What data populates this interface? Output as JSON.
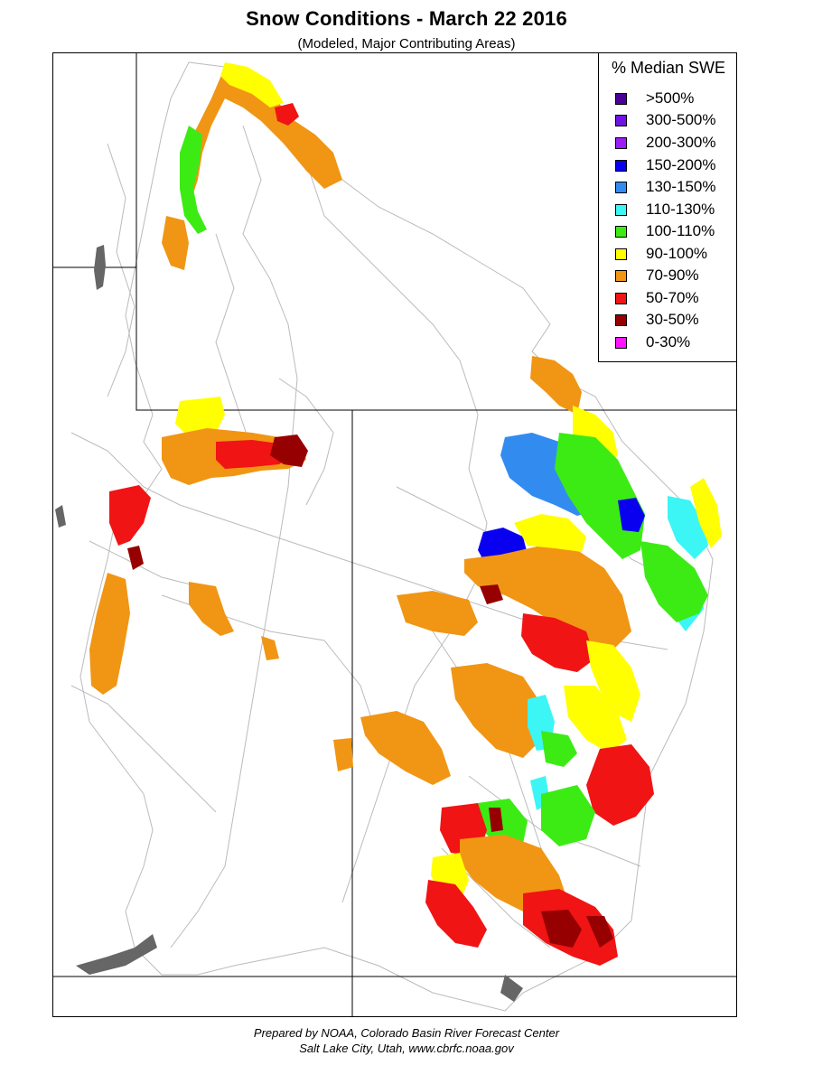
{
  "header": {
    "title": "Snow Conditions - March 22 2016",
    "subtitle": "(Modeled, Major Contributing Areas)"
  },
  "legend": {
    "title": "% Median SWE",
    "items": [
      {
        "label": ">500%",
        "color": "#4B0096"
      },
      {
        "label": "300-500%",
        "color": "#6F14E6"
      },
      {
        "label": "200-300%",
        "color": "#9B1EF5"
      },
      {
        "label": "150-200%",
        "color": "#0A00F0"
      },
      {
        "label": "130-150%",
        "color": "#328CF0"
      },
      {
        "label": "110-130%",
        "color": "#3CF5F5"
      },
      {
        "label": "100-110%",
        "color": "#3CEB14"
      },
      {
        "label": "90-100%",
        "color": "#FFFF00"
      },
      {
        "label": "70-90%",
        "color": "#F09614"
      },
      {
        "label": "50-70%",
        "color": "#F01414"
      },
      {
        "label": "30-50%",
        "color": "#960000"
      },
      {
        "label": "0-30%",
        "color": "#FF14FF"
      }
    ]
  },
  "map": {
    "colors": {
      "boundary": "#000000",
      "river": "#bbbbbb",
      "lake": "#666666"
    }
  },
  "footer": {
    "line1": "Prepared by NOAA, Colorado Basin River Forecast Center",
    "line2": "Salt Lake City, Utah, www.cbrfc.noaa.gov"
  }
}
